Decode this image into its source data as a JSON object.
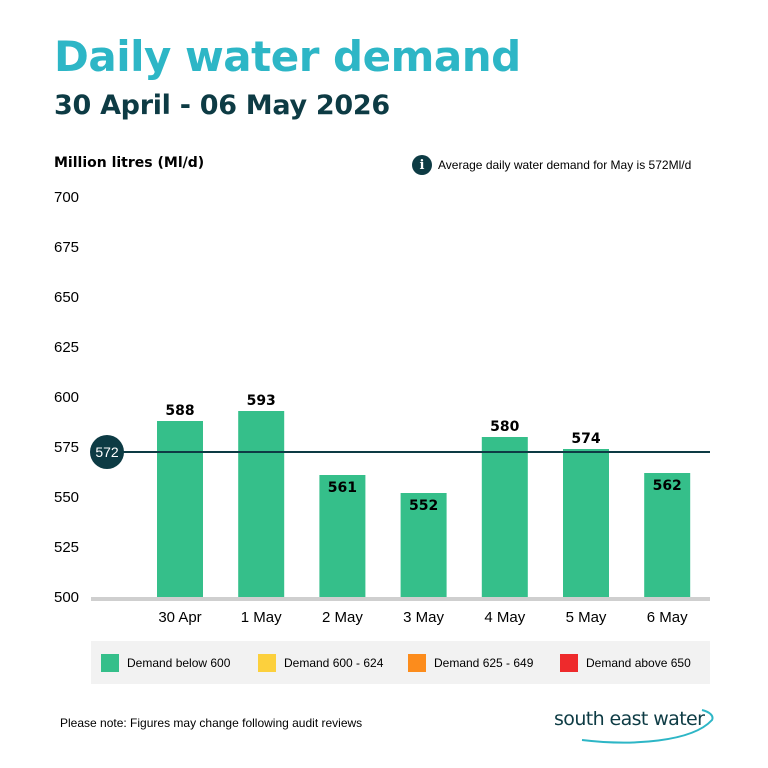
{
  "header": {
    "title": "Daily water demand",
    "subtitle": "30 April - 06 May 2026"
  },
  "note_top": {
    "icon": "info-icon",
    "icon_glyph": "i",
    "text": "Average daily water demand for May is 572Ml/d"
  },
  "legend": {
    "items": [
      {
        "label": "Demand below 600",
        "color": "#35bf8a"
      },
      {
        "label": "Demand 600 - 624",
        "color": "#fcd03d"
      },
      {
        "label": "Demand 625 - 649",
        "color": "#fc8c1c"
      },
      {
        "label": "Demand above 650",
        "color": "#ee2a2c"
      }
    ]
  },
  "footer": {
    "note": "Please note: Figures may change following audit reviews",
    "logo_text": "south east water"
  },
  "chart_data": {
    "type": "bar",
    "title": "Daily water demand",
    "subtitle": "30 April - 06 May 2026",
    "ylabel": "Million litres (Ml/d)",
    "xlabel": "",
    "categories": [
      "30 Apr",
      "1 May",
      "2 May",
      "3 May",
      "4 May",
      "5 May",
      "6 May"
    ],
    "values": [
      588,
      593,
      561,
      552,
      580,
      574,
      562
    ],
    "ylim": [
      500,
      700
    ],
    "yticks": [
      700,
      675,
      650,
      625,
      600,
      575,
      550,
      525,
      500
    ],
    "reference_line": {
      "value": 572,
      "label": "572",
      "color": "#0d3b44"
    },
    "bar_color": "#35bf8a",
    "grid": false,
    "legend_position": "bottom"
  }
}
